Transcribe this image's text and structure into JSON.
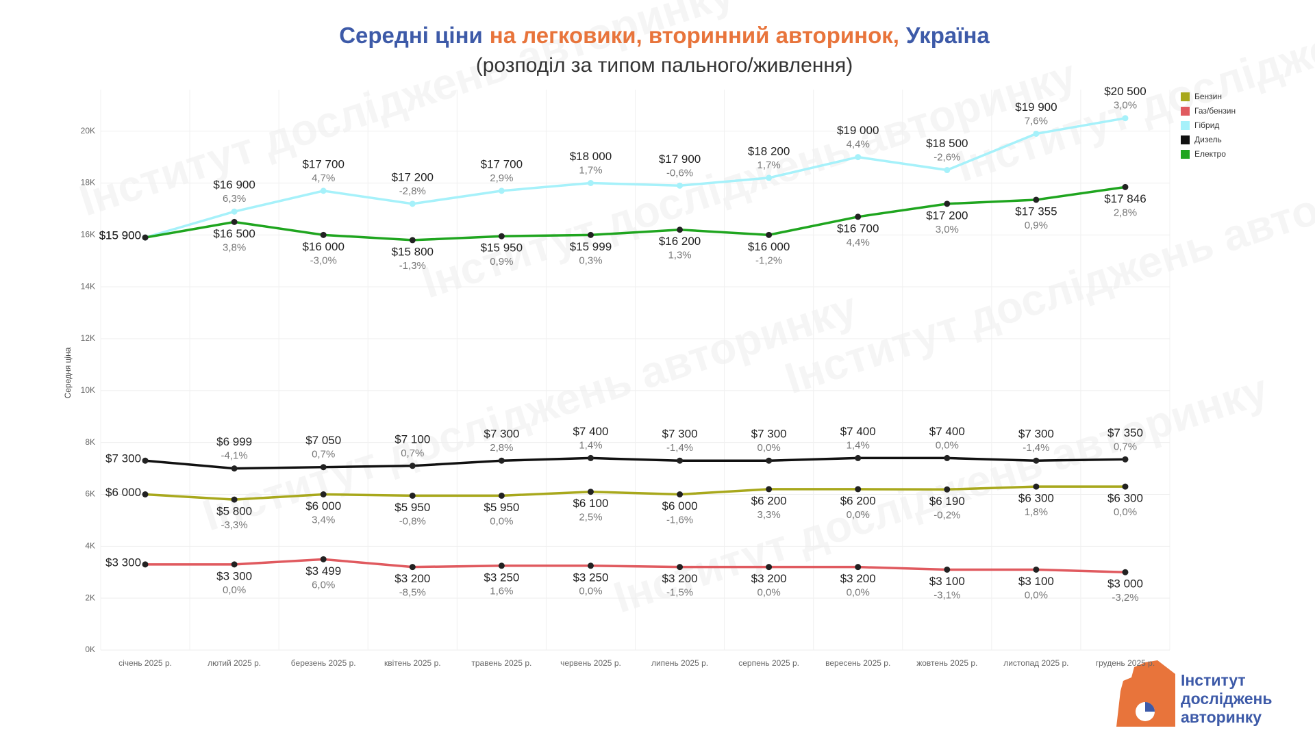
{
  "chart_data": {
    "type": "line",
    "title": [
      {
        "text": "Середні ціни",
        "color": "#3d5aa8"
      },
      {
        "text": "на легковики, вторинний авторинок,",
        "color": "#e8743b"
      },
      {
        "text": "Україна",
        "color": "#3d5aa8"
      }
    ],
    "subtitle": "(розподіл за типом пального/живлення)",
    "y_label": "Середня ціна",
    "categories": [
      "січень 2025 р.",
      "лютий 2025 р.",
      "березень 2025 р.",
      "квітень 2025 р.",
      "травень 2025 р.",
      "червень 2025 р.",
      "липень 2025 р.",
      "серпень 2025 р.",
      "вересень 2025 р.",
      "жовтень 2025 р.",
      "листопад 2025 р.",
      "грудень 2025 р."
    ],
    "ylim": [
      0,
      21600
    ],
    "yticks": [
      {
        "value": 0,
        "label": "0K"
      },
      {
        "value": 2000,
        "label": "2K"
      },
      {
        "value": 4000,
        "label": "4K"
      },
      {
        "value": 6000,
        "label": "6K"
      },
      {
        "value": 8000,
        "label": "8K"
      },
      {
        "value": 10000,
        "label": "10K"
      },
      {
        "value": 12000,
        "label": "12K"
      },
      {
        "value": 14000,
        "label": "14K"
      },
      {
        "value": 16000,
        "label": "16K"
      },
      {
        "value": 18000,
        "label": "18K"
      },
      {
        "value": 20000,
        "label": "20K"
      }
    ],
    "grid": true,
    "legend": "top-right",
    "series": [
      {
        "name": "Бензин",
        "color": "#a8a81c",
        "values": [
          6000,
          5800,
          6000,
          5950,
          5950,
          6100,
          6000,
          6200,
          6200,
          6190,
          6300,
          6300
        ],
        "value_labels": [
          "$6 000",
          "$5 800",
          "$6 000",
          "$5 950",
          "$5 950",
          "$6 100",
          "$6 000",
          "$6 200",
          "$6 200",
          "$6 190",
          "$6 300",
          "$6 300"
        ],
        "change_labels": [
          null,
          "-3,3%",
          "3,4%",
          "-0,8%",
          "0,0%",
          "2,5%",
          "-1,6%",
          "3,3%",
          "0,0%",
          "-0,2%",
          "1,8%",
          "0,0%"
        ]
      },
      {
        "name": "Газ/бензин",
        "color": "#e05a5f",
        "values": [
          3300,
          3300,
          3499,
          3200,
          3250,
          3250,
          3200,
          3200,
          3200,
          3100,
          3100,
          3000
        ],
        "value_labels": [
          "$3 300",
          "$3 300",
          "$3 499",
          "$3 200",
          "$3 250",
          "$3 250",
          "$3 200",
          "$3 200",
          "$3 200",
          "$3 100",
          "$3 100",
          "$3 000"
        ],
        "change_labels": [
          null,
          "0,0%",
          "6,0%",
          "-8,5%",
          "1,6%",
          "0,0%",
          "-1,5%",
          "0,0%",
          "0,0%",
          "-3,1%",
          "0,0%",
          "-3,2%"
        ]
      },
      {
        "name": "Гібрид",
        "color": "#a6f1fa",
        "values": [
          15900,
          16900,
          17700,
          17200,
          17700,
          18000,
          17900,
          18200,
          19000,
          18500,
          19900,
          20500
        ],
        "value_labels": [
          "$15 900",
          "$16 900",
          "$17 700",
          "$17 200",
          "$17 700",
          "$18 000",
          "$17 900",
          "$18 200",
          "$19 000",
          "$18 500",
          "$19 900",
          "$20 500"
        ],
        "change_labels": [
          null,
          "6,3%",
          "4,7%",
          "-2,8%",
          "2,9%",
          "1,7%",
          "-0,6%",
          "1,7%",
          "4,4%",
          "-2,6%",
          "7,6%",
          "3,0%"
        ]
      },
      {
        "name": "Дизель",
        "color": "#111111",
        "values": [
          7300,
          6999,
          7050,
          7100,
          7300,
          7400,
          7300,
          7300,
          7400,
          7400,
          7300,
          7350
        ],
        "value_labels": [
          "$7 300",
          "$6 999",
          "$7 050",
          "$7 100",
          "$7 300",
          "$7 400",
          "$7 300",
          "$7 300",
          "$7 400",
          "$7 400",
          "$7 300",
          "$7 350"
        ],
        "change_labels": [
          null,
          "-4,1%",
          "0,7%",
          "0,7%",
          "2,8%",
          "1,4%",
          "-1,4%",
          "0,0%",
          "1,4%",
          "0,0%",
          "-1,4%",
          "0,7%"
        ]
      },
      {
        "name": "Електро",
        "color": "#1fa51f",
        "values": [
          15900,
          16500,
          16000,
          15800,
          15950,
          15999,
          16200,
          16000,
          16700,
          17200,
          17355,
          17846
        ],
        "value_labels": [
          "$15 900",
          "$16 500",
          "$16 000",
          "$15 800",
          "$15 950",
          "$15 999",
          "$16 200",
          "$16 000",
          "$16 700",
          "$17 200",
          "$17 355",
          "$17 846"
        ],
        "change_labels": [
          null,
          "3,8%",
          "-3,0%",
          "-1,3%",
          "0,9%",
          "0,3%",
          "1,3%",
          "-1,2%",
          "4,4%",
          "3,0%",
          "0,9%",
          "2,8%"
        ]
      }
    ]
  },
  "logo": [
    "Інститут",
    "досліджень",
    "авторинку"
  ],
  "watermark": "Інститут досліджень авторинку"
}
